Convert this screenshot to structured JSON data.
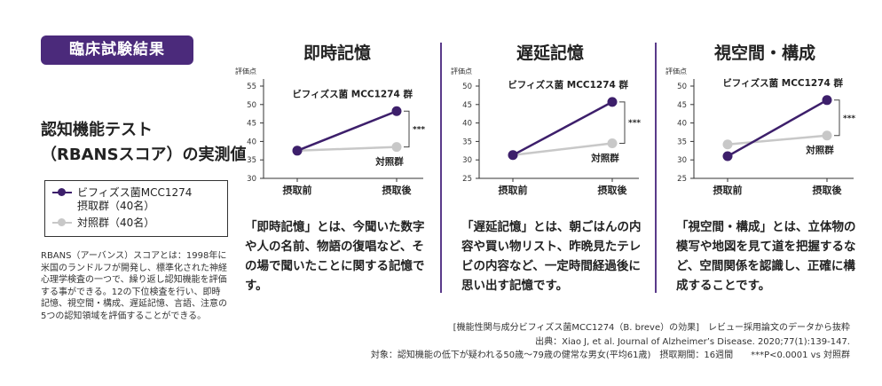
{
  "badge": "臨床試験結果",
  "main_title": [
    "認知機能テスト",
    "（RBANSスコア）の実測値"
  ],
  "legend": {
    "treatment_line1": "ビフィズス菌MCC1274",
    "treatment_line2": "摂取群（40名）",
    "control": "対照群（40名）"
  },
  "note": "RBANS（アーバンス）スコアとは：1998年に米国のランドルフが開発し、標準化された神経心理学検査の一つで、繰り返し認知機能を評価する事ができる。12の下位検査を行い、即時記憶、視空間・構成、遅延記憶、言語、注意の5つの認知領域を評価することができる。",
  "colors": {
    "treatment": "#3d1f6b",
    "control": "#c8c8c8",
    "accent": "#4b2a7b"
  },
  "panels": [
    {
      "title": "即時記憶",
      "desc": "「即時記憶」とは、今聞いた数字や人の名前、物語の復唱など、その場で聞いたことに関する記憶です。"
    },
    {
      "title": "遅延記憶",
      "desc": "「遅延記憶」とは、朝ごはんの内容や買い物リスト、昨晩見たテレビの内容など、一定時間経過後に思い出す記憶です。"
    },
    {
      "title": "視空間・構成",
      "desc": "「視空間・構成」とは、立体物の模写や地図を見て道を把握するなど、空間関係を認識し、正確に構成することです。"
    }
  ],
  "chart_data": [
    {
      "type": "line",
      "categories": [
        "摂取前",
        "摂取後"
      ],
      "ylabel": "評価点",
      "ylim": [
        30,
        55
      ],
      "yticks": [
        30,
        35,
        40,
        45,
        50,
        55
      ],
      "series": [
        {
          "name": "ビフィズス菌 MCC1274 群",
          "values": [
            37.5,
            48.2
          ]
        },
        {
          "name": "対照群",
          "values": [
            37.5,
            38.5
          ]
        }
      ],
      "significance": "***"
    },
    {
      "type": "line",
      "categories": [
        "摂取前",
        "摂取後"
      ],
      "ylabel": "評価点",
      "ylim": [
        25,
        50
      ],
      "yticks": [
        25,
        30,
        35,
        40,
        45,
        50
      ],
      "series": [
        {
          "name": "ビフィズス菌 MCC1274 群",
          "values": [
            31.3,
            45.7
          ]
        },
        {
          "name": "対照群",
          "values": [
            31.3,
            34.5
          ]
        }
      ],
      "significance": "***"
    },
    {
      "type": "line",
      "categories": [
        "摂取前",
        "摂取後"
      ],
      "ylabel": "評価点",
      "ylim": [
        25,
        50
      ],
      "yticks": [
        25,
        30,
        35,
        40,
        45,
        50
      ],
      "series": [
        {
          "name": "ビフィズス菌 MCC1274 群",
          "values": [
            31.0,
            46.2
          ]
        },
        {
          "name": "対照群",
          "values": [
            34.2,
            36.6
          ]
        }
      ],
      "significance": "***"
    }
  ],
  "footer": {
    "line1": "[機能性関与成分ビフィズス菌MCC1274（B. breve）の効果]　レビュー採用論文のデータから抜粋",
    "line2": "出典：Xiao J, et al. Journal of Alzheimer’s Disease. 2020;77(1):139-147.",
    "line3": "対象：認知機能の低下が疑われる50歳〜79歳の健常な男女(平均61歳)　摂取期間：16週間　　***P<0.0001 vs 対照群"
  }
}
